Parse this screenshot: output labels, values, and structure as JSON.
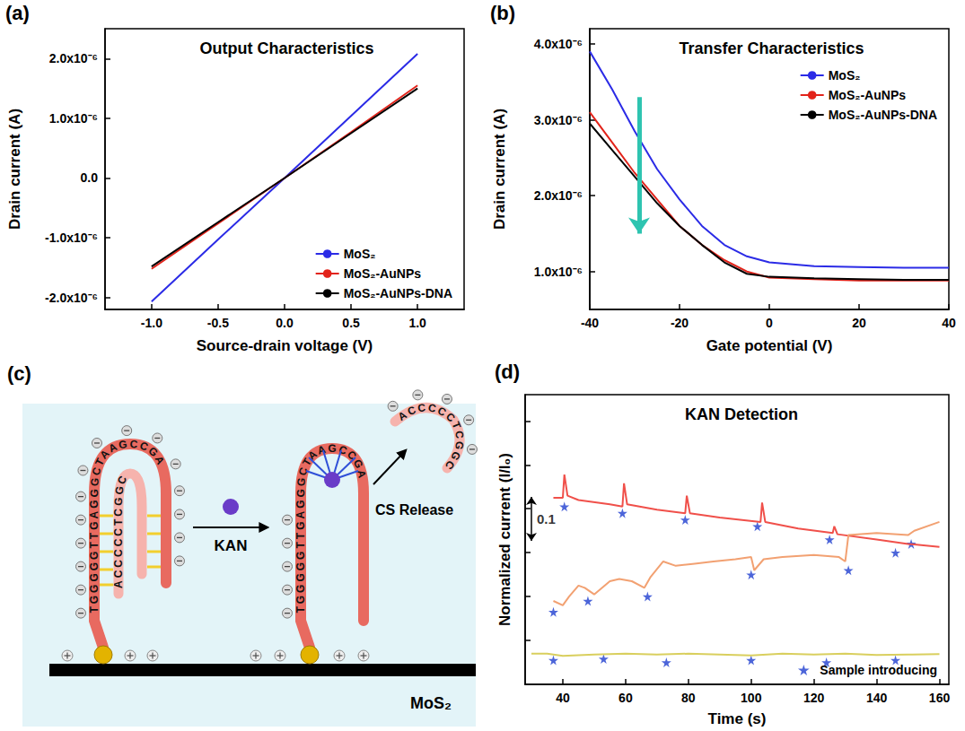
{
  "chart_data": [
    {
      "panel_label": "(a)",
      "type": "line",
      "title": "Output Characteristics",
      "x_label": "Source-drain voltage (V)",
      "y_label": "Drain current (A)",
      "x": [
        -1,
        -0.5,
        0,
        0.5,
        1
      ],
      "series": [
        {
          "name": "MoS₂",
          "color": "#2b2be6",
          "values": [
            -2.07e-06,
            -1.03e-06,
            0,
            1.04e-06,
            2.08e-06
          ]
        },
        {
          "name": "MoS₂-AuNPs",
          "color": "#e2231a",
          "values": [
            -1.52e-06,
            -7.6e-07,
            0,
            7.7e-07,
            1.55e-06
          ]
        },
        {
          "name": "MoS₂-AuNPs-DNA",
          "color": "#000000",
          "values": [
            -1.48e-06,
            -7.4e-07,
            0,
            7.5e-07,
            1.5e-06
          ]
        }
      ],
      "xlim": [
        -1.35,
        1.35
      ],
      "xticks": [
        {
          "value": -1,
          "label": "-1.0"
        },
        {
          "value": -0.5,
          "label": "-0.5"
        },
        {
          "value": 0,
          "label": "0.0"
        },
        {
          "value": 0.5,
          "label": "0.5"
        },
        {
          "value": 1,
          "label": "1.0"
        }
      ],
      "ylim": [
        -2.2e-06,
        2.5e-06
      ],
      "yticks": [
        {
          "value": -2e-06,
          "label": "-2.0x10⁻⁶"
        },
        {
          "value": -1e-06,
          "label": "-1.0x10⁻⁶"
        },
        {
          "value": 0,
          "label": "0.0"
        },
        {
          "value": 1e-06,
          "label": "1.0x10⁻⁶"
        },
        {
          "value": 2e-06,
          "label": "2.0x10⁻⁶"
        }
      ],
      "legend": "lower right",
      "grid": false
    },
    {
      "panel_label": "(b)",
      "type": "line",
      "title": "Transfer Characteristics",
      "x_label": "Gate potential (V)",
      "y_label": "Drain current (A)",
      "x": [
        -40,
        -35,
        -30,
        -25,
        -20,
        -15,
        -10,
        -5,
        0,
        10,
        20,
        30,
        40
      ],
      "series": [
        {
          "name": "MoS₂",
          "color": "#2b2be6",
          "values": [
            3.9e-06,
            3.4e-06,
            2.85e-06,
            2.35e-06,
            1.95e-06,
            1.6e-06,
            1.35e-06,
            1.2e-06,
            1.12e-06,
            1.07e-06,
            1.06e-06,
            1.05e-06,
            1.05e-06
          ]
        },
        {
          "name": "MoS₂-AuNPs",
          "color": "#e2231a",
          "values": [
            3.1e-06,
            2.7e-06,
            2.3e-06,
            1.95e-06,
            1.6e-06,
            1.35e-06,
            1.15e-06,
            1e-06,
            9.2e-07,
            9e-07,
            8.8e-07,
            8.8e-07,
            8.8e-07
          ]
        },
        {
          "name": "MoS₂-AuNPs-DNA",
          "color": "#000000",
          "values": [
            2.95e-06,
            2.6e-06,
            2.25e-06,
            1.9e-06,
            1.6e-06,
            1.35e-06,
            1.12e-06,
            9.7e-07,
            9.3e-07,
            9.1e-07,
            9e-07,
            8.9e-07,
            8.9e-07
          ]
        }
      ],
      "arrow": {
        "x": -29,
        "from": 3.3e-06,
        "to": 1.5e-06,
        "color": "#2ec4b0"
      },
      "xlim": [
        -40,
        40
      ],
      "xticks": [
        -40,
        -20,
        0,
        20,
        40
      ],
      "ylim": [
        5e-07,
        4.2e-06
      ],
      "yticks": [
        {
          "value": 1e-06,
          "label": "1.0x10⁻⁶"
        },
        {
          "value": 2e-06,
          "label": "2.0x10⁻⁶"
        },
        {
          "value": 3e-06,
          "label": "3.0x10⁻⁶"
        },
        {
          "value": 4e-06,
          "label": "4.0x10⁻⁶"
        }
      ],
      "legend": "upper right",
      "grid": false
    },
    {
      "panel_label": "(d)",
      "type": "line",
      "title": "KAN Detection",
      "x_label": "Time (s)",
      "y_label": "Normalized current (I/I₀)",
      "series": [
        {
          "type": "line",
          "color": "#f0504a",
          "x": [
            37,
            40,
            40.5,
            41.5,
            45,
            55,
            59,
            59.5,
            60.5,
            70,
            79,
            79.5,
            80.5,
            90,
            103,
            103.5,
            104.5,
            115,
            126,
            126.5,
            127.5,
            140,
            150,
            160
          ],
          "values": [
            0.425,
            0.425,
            0.478,
            0.43,
            0.42,
            0.41,
            0.405,
            0.458,
            0.41,
            0.398,
            0.39,
            0.43,
            0.39,
            0.38,
            0.37,
            0.414,
            0.37,
            0.355,
            0.345,
            0.36,
            0.342,
            0.33,
            0.32,
            0.313
          ]
        },
        {
          "type": "line",
          "color": "#f2a172",
          "x": [
            37,
            40,
            42,
            45,
            47,
            50,
            55,
            58,
            62,
            66,
            68,
            72,
            76,
            82,
            88,
            95,
            100,
            101,
            104,
            110,
            120,
            128,
            130,
            131,
            140,
            150,
            152,
            160
          ],
          "values": [
            0.19,
            0.18,
            0.2,
            0.225,
            0.22,
            0.205,
            0.235,
            0.24,
            0.235,
            0.22,
            0.245,
            0.28,
            0.27,
            0.275,
            0.28,
            0.285,
            0.29,
            0.26,
            0.285,
            0.29,
            0.295,
            0.29,
            0.28,
            0.34,
            0.345,
            0.34,
            0.35,
            0.37
          ]
        },
        {
          "type": "line",
          "color": "#d9cf5e",
          "x": [
            30,
            35,
            40,
            50,
            60,
            70,
            80,
            90,
            100,
            110,
            120,
            130,
            140,
            150,
            160
          ],
          "values": [
            0.07,
            0.07,
            0.065,
            0.068,
            0.07,
            0.068,
            0.07,
            0.068,
            0.066,
            0.07,
            0.068,
            0.07,
            0.067,
            0.068,
            0.069
          ]
        },
        {
          "type": "scatter",
          "marker": "star",
          "name": "Sample introducing",
          "color": "#1f3fcf",
          "x": [
            40.5,
            59,
            79,
            102,
            125,
            146,
            37,
            48,
            67,
            100,
            131,
            151,
            37,
            53,
            73,
            100,
            124,
            146
          ],
          "values": [
            0.405,
            0.39,
            0.375,
            0.36,
            0.33,
            0.3,
            0.165,
            0.19,
            0.2,
            0.25,
            0.26,
            0.32,
            0.055,
            0.058,
            0.05,
            0.055,
            0.05,
            0.055
          ]
        }
      ],
      "scale_bar": {
        "value": 0.1,
        "x": 30,
        "y": 0.327
      },
      "xlim": [
        28,
        163
      ],
      "xticks": [
        40,
        60,
        80,
        100,
        120,
        140,
        160
      ],
      "ylim": [
        0,
        0.66
      ],
      "yticks": [
        0.1,
        0.2,
        0.3,
        0.4,
        0.5,
        0.6
      ],
      "tick_labels": "x",
      "legend": "lower right",
      "grid": false
    }
  ],
  "diagram": {
    "panel_label": "(c)",
    "target": "KAN",
    "release_label": "CS Release",
    "substrate": "MoS₂",
    "aptamer": "TGGGGGTTGAGGGCTAAGCCGA",
    "complementary_strand": "ACCCCCTCGGC"
  }
}
